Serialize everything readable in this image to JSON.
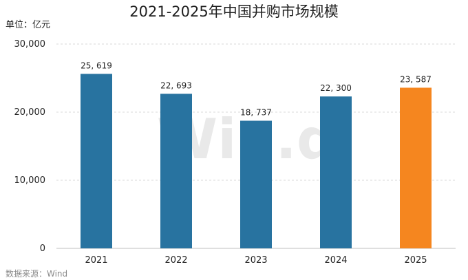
{
  "chart_data": {
    "type": "bar",
    "title": "2021-2025年中国并购市场规模",
    "unit_label": "单位：亿元",
    "categories": [
      "2021",
      "2022",
      "2023",
      "2024",
      "2025"
    ],
    "values": [
      25619,
      22693,
      18737,
      22300,
      23587
    ],
    "value_labels": [
      "25, 619",
      "22, 693",
      "18, 737",
      "22, 300",
      "23, 587"
    ],
    "ylim": [
      0,
      30000
    ],
    "yticks": [
      0,
      10000,
      20000,
      30000
    ],
    "ytick_labels": [
      "0",
      "10,000",
      "20,000",
      "30,000"
    ],
    "grid": true,
    "colors": [
      "#2873a0",
      "#2873a0",
      "#2873a0",
      "#2873a0",
      "#f5861f"
    ],
    "source": "数据来源：Wind",
    "watermark": "Win.d"
  }
}
